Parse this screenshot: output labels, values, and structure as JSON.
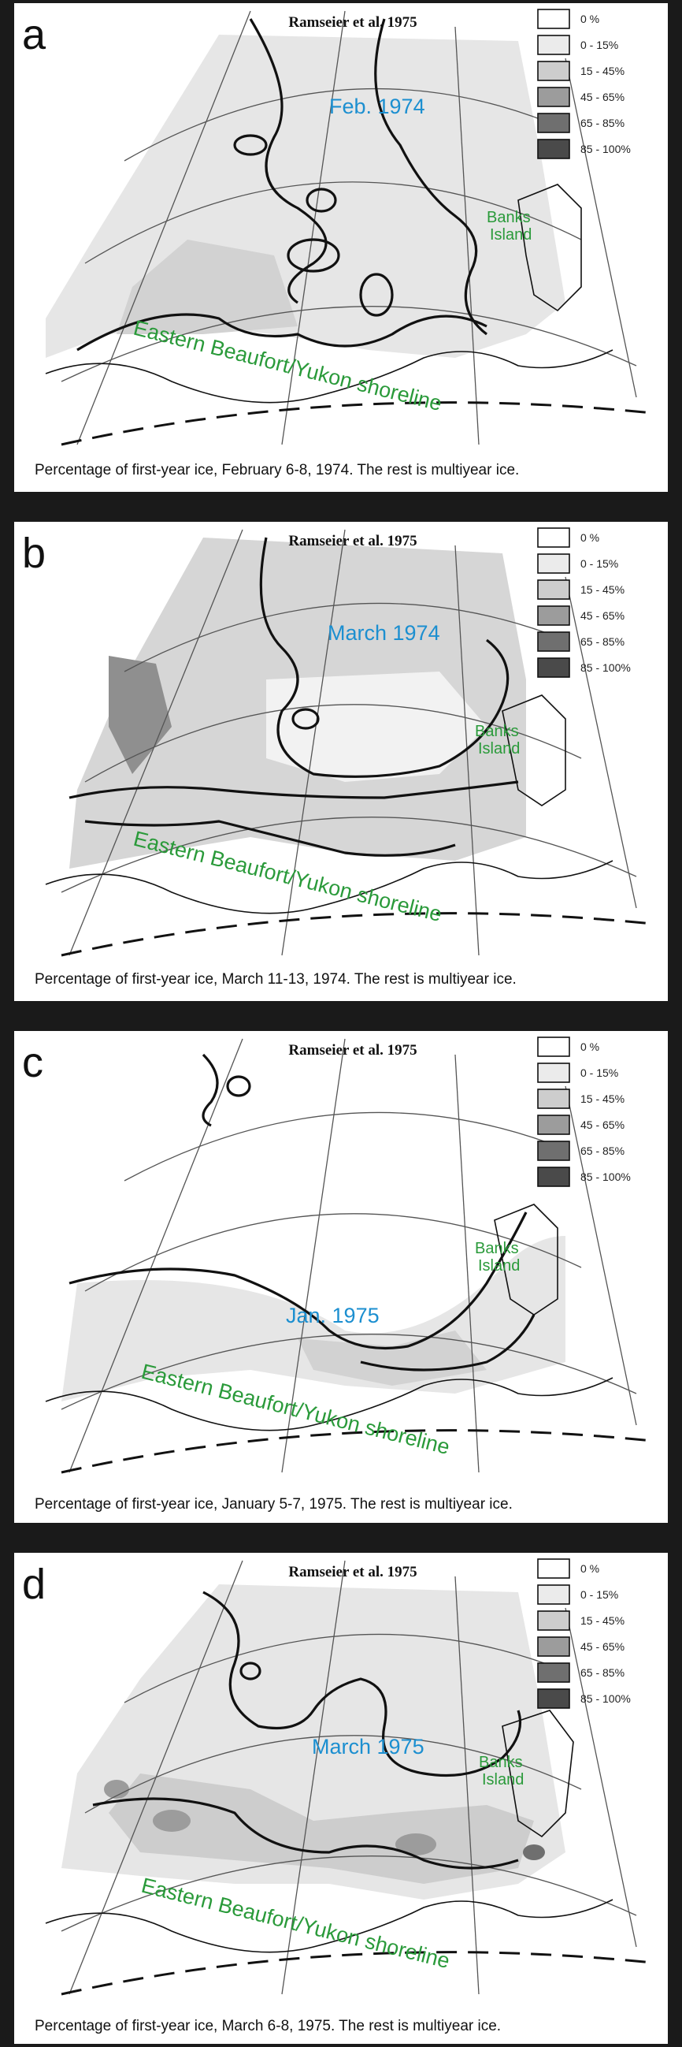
{
  "legend": {
    "categories": [
      "0 %",
      "0 - 15%",
      "15 - 45%",
      "45 - 65%",
      "65 - 85%",
      "85 - 100%"
    ],
    "colors": [
      "#ffffff",
      "#ebebeb",
      "#cdcdcd",
      "#9c9c9c",
      "#6f6f6f",
      "#4a4a4a"
    ]
  },
  "panels": [
    {
      "letter": "a",
      "source": "Ramseier et al. 1975",
      "date_label": "Feb. 1974",
      "island_label_1": "Banks",
      "island_label_2": "Island",
      "shoreline_label": "Eastern Beaufort/Yukon shoreline",
      "caption": "Percentage of first-year ice, February 6-8, 1974. The rest is multiyear ice."
    },
    {
      "letter": "b",
      "source": "Ramseier et al. 1975",
      "date_label": "March 1974",
      "island_label_1": "Banks",
      "island_label_2": "Island",
      "shoreline_label": "Eastern Beaufort/Yukon shoreline",
      "caption": "Percentage of first-year ice, March 11-13, 1974. The rest is multiyear ice."
    },
    {
      "letter": "c",
      "source": "Ramseier et al. 1975",
      "date_label": "Jan. 1975",
      "island_label_1": "Banks",
      "island_label_2": "Island",
      "shoreline_label": "Eastern Beaufort/Yukon shoreline",
      "caption": "Percentage of first-year ice, January 5-7, 1975. The rest is multiyear ice."
    },
    {
      "letter": "d",
      "source": "Ramseier et al. 1975",
      "date_label": "March 1975",
      "island_label_1": "Banks",
      "island_label_2": "Island",
      "shoreline_label": "Eastern Beaufort/Yukon shoreline",
      "caption": "Percentage of first-year ice, March 6-8, 1975. The rest is multiyear ice."
    }
  ]
}
